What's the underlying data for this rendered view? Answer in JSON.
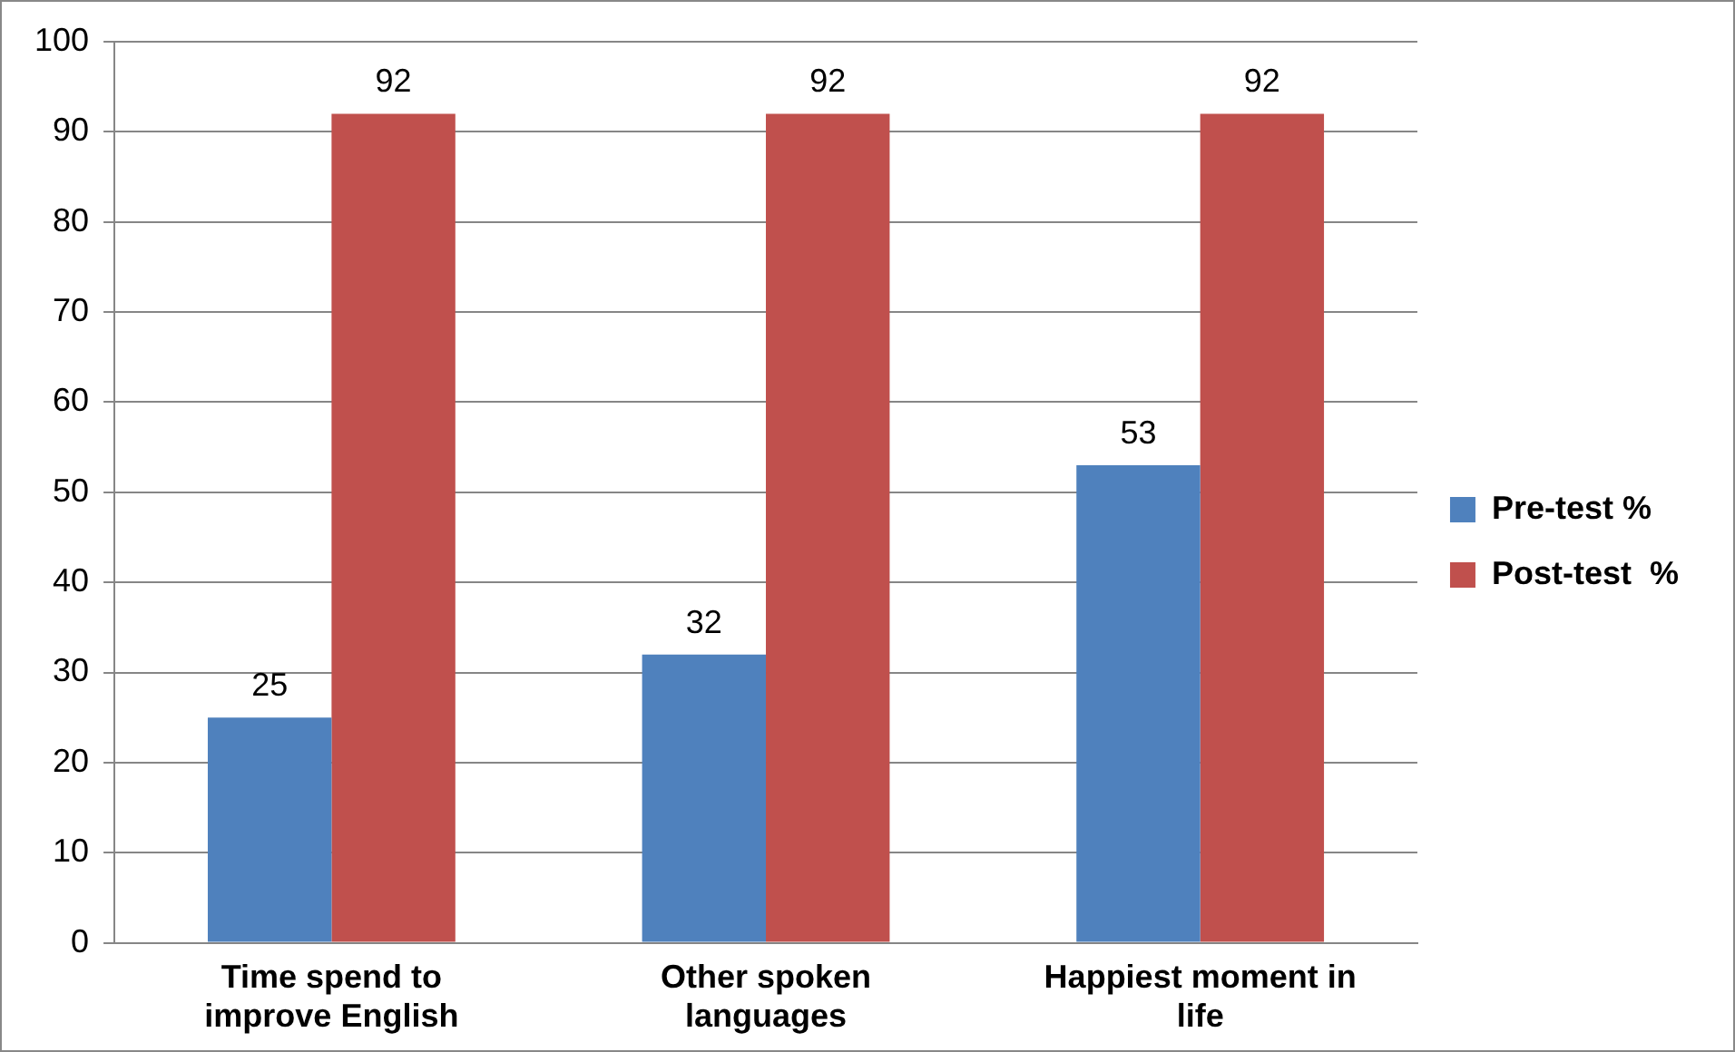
{
  "chart_data": {
    "type": "bar",
    "categories": [
      "Time spend to improve English",
      "Other spoken languages",
      "Happiest moment in life"
    ],
    "series": [
      {
        "name": "Pre-test %",
        "color": "#4f81bd",
        "values": [
          25,
          32,
          53
        ]
      },
      {
        "name": "Post-test  %",
        "color": "#c0504d",
        "values": [
          92,
          92,
          92
        ]
      }
    ],
    "ylim": [
      0,
      100
    ],
    "yticks": [
      0,
      10,
      20,
      30,
      40,
      50,
      60,
      70,
      80,
      90,
      100
    ],
    "grid": "y",
    "legend": "right",
    "data_labels": true
  }
}
